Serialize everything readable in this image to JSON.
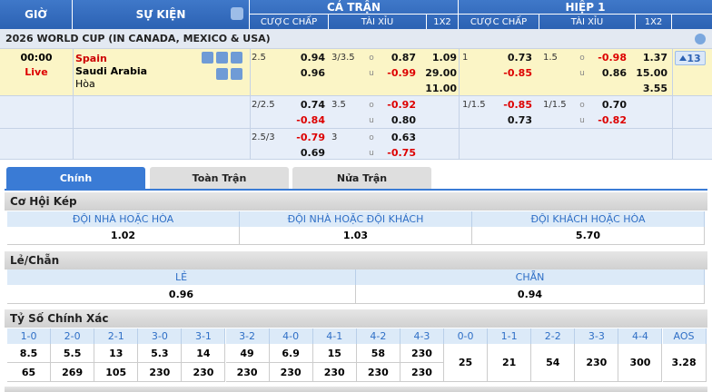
{
  "header": {
    "time": "GIỜ",
    "event": "SỰ KIỆN",
    "full": "CẢ TRẬN",
    "half": "HIỆP 1",
    "full_cols": [
      "CƯỢC CHẤP",
      "TÀI XỈU",
      "1X2"
    ],
    "half_cols": [
      "CƯỢC CHẤP",
      "TÀI XỈU",
      "1X2"
    ]
  },
  "league": "2026 WORLD CUP (IN CANADA, MEXICO & USA)",
  "match": {
    "time": "00:00",
    "status": "Live",
    "home": "Spain",
    "away": "Saudi Arabia",
    "draw": "Hòa",
    "more": "13",
    "over_label": "o",
    "under_label": "u",
    "rows": [
      {
        "full": {
          "hdp": {
            "line": "2.5",
            "home": "0.94",
            "away": "0.96"
          },
          "ou": {
            "line": "3/3.5",
            "over": "0.87",
            "under": "-0.99"
          },
          "x12": [
            "1.09",
            "29.00",
            "11.00"
          ]
        },
        "half": {
          "hdp": {
            "line": "1",
            "home": "0.73",
            "away": "-0.85"
          },
          "ou": {
            "line": "1.5",
            "over": "-0.98",
            "under": "0.86"
          },
          "x12": [
            "1.37",
            "15.00",
            "3.55"
          ]
        }
      },
      {
        "full": {
          "hdp": {
            "line": "2/2.5",
            "home": "0.74",
            "away": "-0.84"
          },
          "ou": {
            "line": "3.5",
            "over": "-0.92",
            "under": "0.80"
          }
        },
        "half": {
          "hdp": {
            "line": "1/1.5",
            "home": "-0.85",
            "away": "0.73"
          },
          "ou": {
            "line": "1/1.5",
            "over": "0.70",
            "under": "-0.82"
          }
        }
      },
      {
        "full": {
          "hdp": {
            "line": "2.5/3",
            "home": "-0.79",
            "away": "0.69"
          },
          "ou": {
            "line": "3",
            "over": "0.63",
            "under": "-0.75"
          }
        }
      }
    ]
  },
  "tabs": {
    "items": [
      "Chính",
      "Toàn Trận",
      "Nửa Trận"
    ],
    "active": 0
  },
  "double_chance": {
    "title": "Cơ Hội Kép",
    "headers": [
      "ĐỘI NHÀ HOẶC HÒA",
      "ĐỘI NHÀ HOẶC ĐỘI KHÁCH",
      "ĐỘI KHÁCH HOẶC HÒA"
    ],
    "values": [
      "1.02",
      "1.03",
      "5.70"
    ]
  },
  "odd_even": {
    "title": "Lẻ/Chẵn",
    "headers": [
      "LẺ",
      "CHẴN"
    ],
    "values": [
      "0.96",
      "0.94"
    ]
  },
  "correct_score": {
    "title": "Tỷ Số Chính Xác",
    "scores": [
      "1-0",
      "2-0",
      "2-1",
      "3-0",
      "3-1",
      "3-2",
      "4-0",
      "4-1",
      "4-2",
      "4-3"
    ],
    "home_values": [
      "8.5",
      "5.5",
      "13",
      "5.3",
      "14",
      "49",
      "6.9",
      "15",
      "58",
      "230"
    ],
    "away_values": [
      "65",
      "269",
      "105",
      "230",
      "230",
      "230",
      "230",
      "230",
      "230",
      "230"
    ],
    "other_scores": [
      "0-0",
      "1-1",
      "2-2",
      "3-3",
      "4-4",
      "AOS"
    ],
    "other_values": [
      "25",
      "21",
      "54",
      "230",
      "300",
      "3.28"
    ]
  }
}
